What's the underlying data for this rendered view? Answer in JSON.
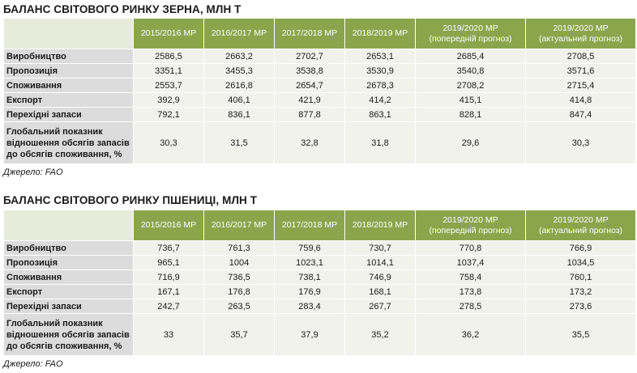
{
  "columns": [
    "2015/2016 МР",
    "2016/2017 МР",
    "2017/2018 МР",
    "2018/2019 МР",
    "2019/2020 МР (попередній прогноз)",
    "2019/2020 МР (актуальний прогноз)"
  ],
  "col_lines": [
    [
      "2015/2016 МР"
    ],
    [
      "2016/2017 МР"
    ],
    [
      "2017/2018 МР"
    ],
    [
      "2018/2019 МР"
    ],
    [
      "2019/2020 МР",
      "(попередній прогноз)"
    ],
    [
      "2019/2020 МР",
      "(актуальний прогноз)"
    ]
  ],
  "tables": [
    {
      "title": "БАЛАНС СВІТОВОГО РИНКУ ЗЕРНА, МЛН Т",
      "source": "Джерело: FAO",
      "rows": [
        {
          "label": "Виробництво",
          "values": [
            "2586,5",
            "2663,2",
            "2702,7",
            "2653,1",
            "2685,4",
            "2708,5"
          ]
        },
        {
          "label": "Пропозиція",
          "values": [
            "3351,1",
            "3455,3",
            "3538,8",
            "3530,9",
            "3540,8",
            "3571,6"
          ]
        },
        {
          "label": "Споживання",
          "values": [
            "2553,7",
            "2616,8",
            "2654,7",
            "2678,3",
            "2708,2",
            "2715,4"
          ]
        },
        {
          "label": "Експорт",
          "values": [
            "392,9",
            "406,1",
            "421,9",
            "414,2",
            "415,1",
            "414,8"
          ]
        },
        {
          "label": "Перехідні запаси",
          "values": [
            "792,1",
            "836,1",
            "877,8",
            "863,1",
            "828,1",
            "847,4"
          ]
        },
        {
          "label_lines": [
            "Глобальний показник",
            "відношення обсягів запасів",
            "до обсягів споживання, %"
          ],
          "values": [
            "30,3",
            "31,5",
            "32,8",
            "31,8",
            "29,6",
            "30,3"
          ]
        }
      ]
    },
    {
      "title": "БАЛАНС СВІТОВОГО РИНКУ ПШЕНИЦІ, МЛН Т",
      "source": "Джерело: FAO",
      "rows": [
        {
          "label": "Виробництво",
          "values": [
            "736,7",
            "761,3",
            "759,6",
            "730,7",
            "770,8",
            "766,9"
          ]
        },
        {
          "label": "Пропозиція",
          "values": [
            "965,1",
            "1004",
            "1023,1",
            "1014,1",
            "1037,4",
            "1034,5"
          ]
        },
        {
          "label": "Споживання",
          "values": [
            "716,9",
            "736,5",
            "738,1",
            "746,9",
            "758,4",
            "760,1"
          ]
        },
        {
          "label": "Експорт",
          "values": [
            "167,1",
            "176,8",
            "176,9",
            "168,1",
            "173,8",
            "173,2"
          ]
        },
        {
          "label": "Перехідні запаси",
          "values": [
            "242,7",
            "263,5",
            "283,4",
            "267,7",
            "278,5",
            "273,6"
          ]
        },
        {
          "label_lines": [
            "Глобальний показник",
            "відношення обсягів запасів",
            "до обсягів споживання, %"
          ],
          "values": [
            "33",
            "35,7",
            "37,9",
            "35,2",
            "36,2",
            "35,5"
          ]
        }
      ]
    }
  ]
}
